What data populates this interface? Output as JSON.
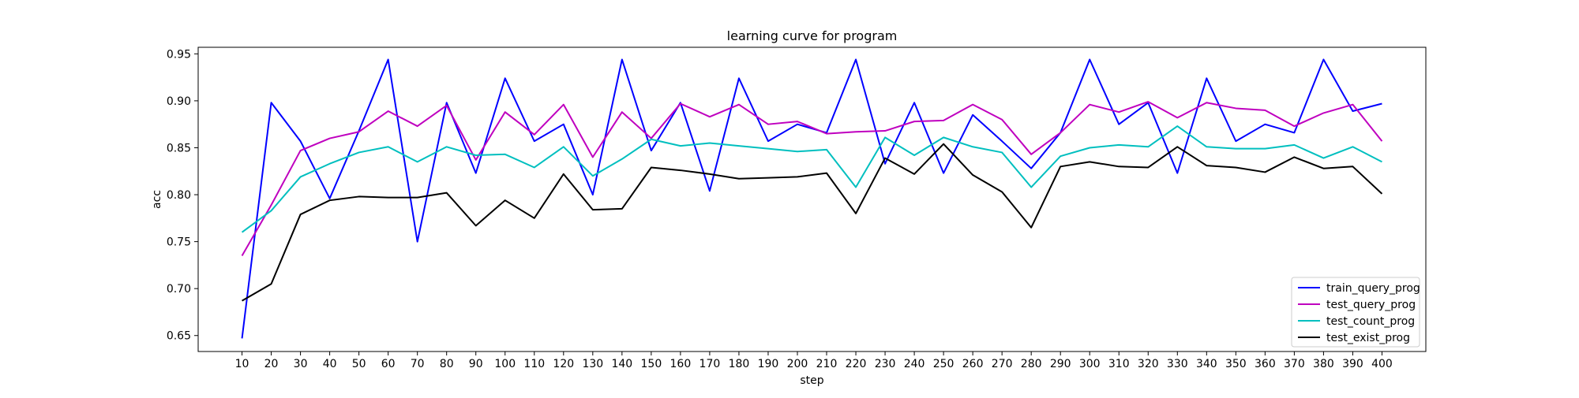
{
  "chart_data": {
    "type": "line",
    "title": "learning curve for program",
    "xlabel": "step",
    "ylabel": "acc",
    "x": [
      10,
      20,
      30,
      40,
      50,
      60,
      70,
      80,
      90,
      100,
      110,
      120,
      130,
      140,
      150,
      160,
      170,
      180,
      190,
      200,
      210,
      220,
      230,
      240,
      250,
      260,
      270,
      280,
      290,
      300,
      310,
      320,
      330,
      340,
      350,
      360,
      370,
      380,
      390,
      400
    ],
    "xlim": [
      -5,
      415
    ],
    "ylim": [
      0.633,
      0.957
    ],
    "yticks": [
      0.65,
      0.7,
      0.75,
      0.8,
      0.85,
      0.9,
      0.95
    ],
    "ytick_labels": [
      "0.65",
      "0.70",
      "0.75",
      "0.80",
      "0.85",
      "0.90",
      "0.95"
    ],
    "grid": false,
    "legend_position": "bottom-right",
    "series": [
      {
        "name": "train_query_prog",
        "color": "#0000ff",
        "values": [
          0.647,
          0.898,
          0.857,
          0.796,
          0.868,
          0.944,
          0.75,
          0.898,
          0.823,
          0.924,
          0.857,
          0.875,
          0.8,
          0.944,
          0.847,
          0.898,
          0.804,
          0.924,
          0.857,
          0.875,
          0.866,
          0.944,
          0.833,
          0.898,
          0.823,
          0.885,
          0.857,
          0.828,
          0.866,
          0.944,
          0.875,
          0.898,
          0.823,
          0.924,
          0.857,
          0.875,
          0.866,
          0.944,
          0.889,
          0.897
        ]
      },
      {
        "name": "test_query_prog",
        "color": "#bf00bf",
        "values": [
          0.735,
          0.789,
          0.847,
          0.86,
          0.867,
          0.889,
          0.873,
          0.895,
          0.837,
          0.888,
          0.864,
          0.896,
          0.84,
          0.888,
          0.86,
          0.897,
          0.883,
          0.896,
          0.875,
          0.878,
          0.865,
          0.867,
          0.868,
          0.878,
          0.879,
          0.896,
          0.88,
          0.843,
          0.866,
          0.896,
          0.888,
          0.899,
          0.882,
          0.898,
          0.892,
          0.89,
          0.873,
          0.887,
          0.896,
          0.857
        ]
      },
      {
        "name": "test_count_prog",
        "color": "#00bfbf",
        "values": [
          0.76,
          0.783,
          0.819,
          0.833,
          0.845,
          0.851,
          0.835,
          0.851,
          0.842,
          0.843,
          0.829,
          0.851,
          0.82,
          0.838,
          0.859,
          0.852,
          0.855,
          0.852,
          0.849,
          0.846,
          0.848,
          0.808,
          0.861,
          0.842,
          0.861,
          0.851,
          0.845,
          0.808,
          0.841,
          0.85,
          0.853,
          0.851,
          0.873,
          0.851,
          0.849,
          0.849,
          0.853,
          0.839,
          0.851,
          0.835
        ]
      },
      {
        "name": "test_exist_prog",
        "color": "#000000",
        "values": [
          0.687,
          0.705,
          0.779,
          0.794,
          0.798,
          0.797,
          0.797,
          0.802,
          0.767,
          0.794,
          0.775,
          0.822,
          0.784,
          0.785,
          0.829,
          0.826,
          0.822,
          0.817,
          0.818,
          0.819,
          0.823,
          0.78,
          0.839,
          0.822,
          0.854,
          0.821,
          0.803,
          0.765,
          0.83,
          0.835,
          0.83,
          0.829,
          0.851,
          0.831,
          0.829,
          0.824,
          0.84,
          0.828,
          0.83,
          0.801
        ]
      }
    ]
  }
}
